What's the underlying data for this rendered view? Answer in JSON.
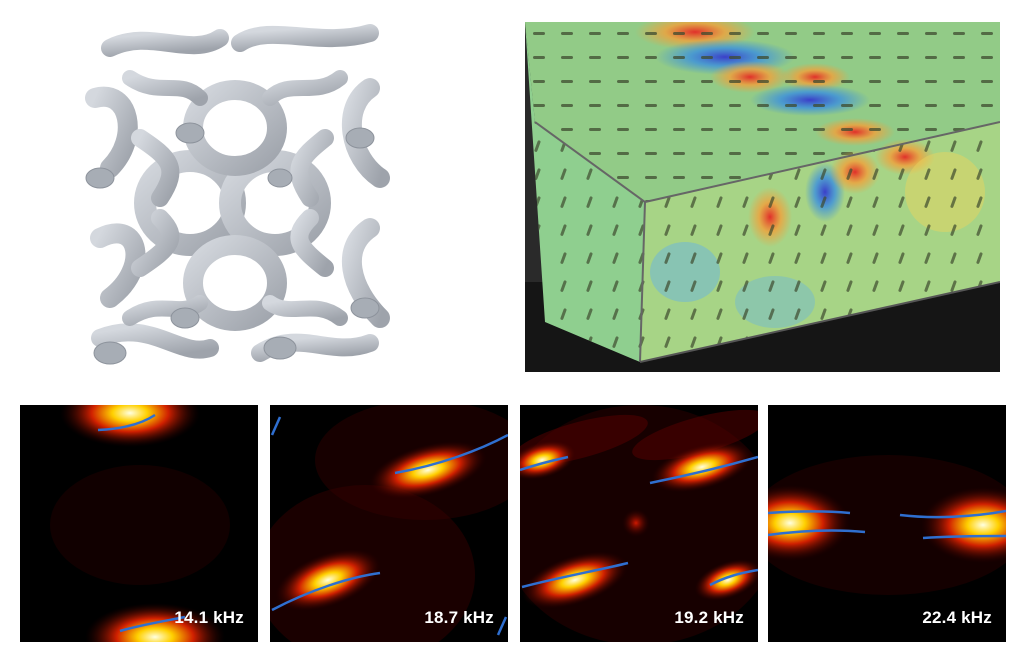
{
  "lattice_panel": {
    "subject": "gyroid-lattice-unit-cell"
  },
  "photo_panel": {
    "subject": "3d-printed-block-with-field-overlay"
  },
  "maps": [
    {
      "frequency": "14.1 kHz"
    },
    {
      "frequency": "18.7 kHz"
    },
    {
      "frequency": "19.2 kHz"
    },
    {
      "frequency": "22.4 kHz"
    }
  ],
  "colors": {
    "hot_core": "#fff9c0",
    "hot_mid": "#ffb000",
    "hot_outer": "#c01000",
    "curve": "#2f6fd0",
    "lattice": "#b9bec6",
    "lattice_shadow": "#8d939c"
  }
}
